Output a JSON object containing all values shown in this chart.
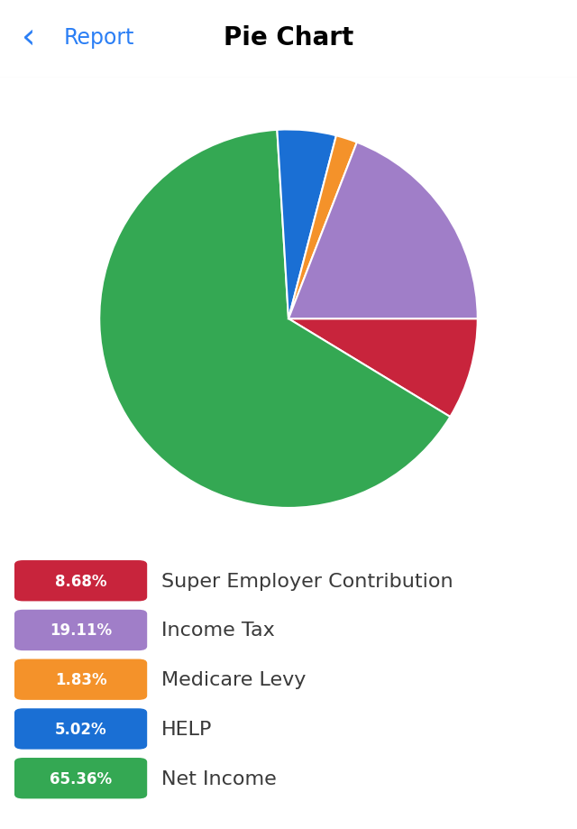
{
  "title": "Pie Chart",
  "nav_label": "Report",
  "background_color": "#ffffff",
  "slices": [
    {
      "label": "Super Employer Contribution",
      "pct": 8.68,
      "color": "#c8243c"
    },
    {
      "label": "Net Income",
      "pct": 65.36,
      "color": "#34a853"
    },
    {
      "label": "HELP",
      "pct": 5.02,
      "color": "#1a6fd4"
    },
    {
      "label": "Medicare Levy",
      "pct": 1.83,
      "color": "#f4922a"
    },
    {
      "label": "Income Tax",
      "pct": 19.11,
      "color": "#a07ec8"
    }
  ],
  "legend_order": [
    {
      "label": "Super Employer Contribution",
      "pct": "8.68%",
      "color": "#c8243c"
    },
    {
      "label": "Income Tax",
      "pct": "19.11%",
      "color": "#a07ec8"
    },
    {
      "label": "Medicare Levy",
      "pct": "1.83%",
      "color": "#f4922a"
    },
    {
      "label": "HELP",
      "pct": "5.02%",
      "color": "#1a6fd4"
    },
    {
      "label": "Net Income",
      "pct": "65.36%",
      "color": "#34a853"
    }
  ],
  "pie_startangle": 0,
  "legend_pct_fontsize": 12,
  "legend_label_fontsize": 16,
  "title_fontsize": 20,
  "nav_fontsize": 17,
  "header_separator_color": "#d0d0d8"
}
